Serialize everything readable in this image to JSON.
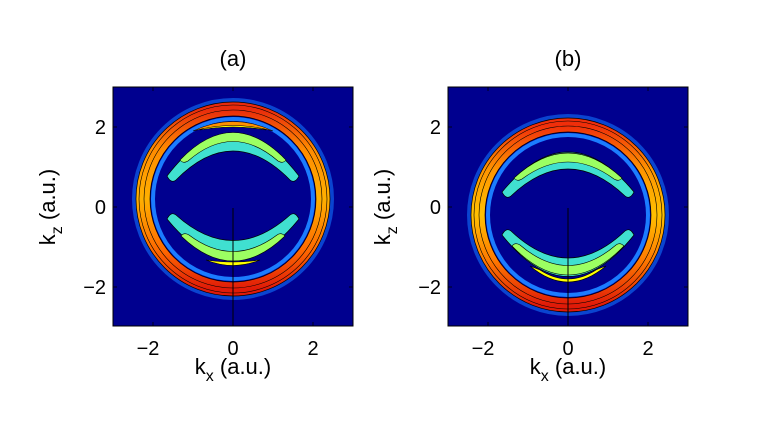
{
  "chart_data": [
    {
      "type": "heatmap",
      "title": "(a)",
      "xlabel_main": "k",
      "xlabel_sub": "x",
      "xlabel_unit": " (a.u.)",
      "ylabel_main": "k",
      "ylabel_sub": "z",
      "ylabel_unit": " (a.u.)",
      "xlim": [
        -3,
        3
      ],
      "ylim": [
        -3,
        3
      ],
      "xticks": [
        -2,
        0,
        2
      ],
      "yticks": [
        -2,
        0,
        2
      ],
      "xtick_labels": [
        "−2",
        "0",
        "2"
      ],
      "ytick_labels": [
        "−2",
        "0",
        "2"
      ],
      "background_color": "#00008f",
      "outer_ring": {
        "center": [
          0,
          0.18
        ],
        "radius": 2.35,
        "shading": "top-and-bottom"
      },
      "inner_lobes": [
        {
          "center": [
            0,
            1.95
          ],
          "level": "yellow"
        },
        {
          "center": [
            0,
            -1.35
          ],
          "level": "yellow"
        }
      ],
      "vertical_line": {
        "x": 0,
        "y_from": 0,
        "y_to": -3
      }
    },
    {
      "type": "heatmap",
      "title": "(b)",
      "xlabel_main": "k",
      "xlabel_sub": "x",
      "xlabel_unit": " (a.u.)",
      "ylabel_main": "k",
      "ylabel_sub": "z",
      "ylabel_unit": " (a.u.)",
      "xlim": [
        -3,
        3
      ],
      "ylim": [
        -3,
        3
      ],
      "xticks": [
        -2,
        0,
        2
      ],
      "yticks": [
        -2,
        0,
        2
      ],
      "xtick_labels": [
        "−2",
        "0",
        "2"
      ],
      "ytick_labels": [
        "−2",
        "0",
        "2"
      ],
      "background_color": "#00008f",
      "outer_ring": {
        "center": [
          0,
          -0.18
        ],
        "radius": 2.35,
        "shading": "top-and-bottom"
      },
      "inner_lobes": [
        {
          "center": [
            0,
            1.4
          ],
          "level": "green"
        },
        {
          "center": [
            0,
            -1.9
          ],
          "level": "yellow"
        }
      ],
      "vertical_line": {
        "x": 0,
        "y_from": 0,
        "y_to": -3
      }
    }
  ]
}
